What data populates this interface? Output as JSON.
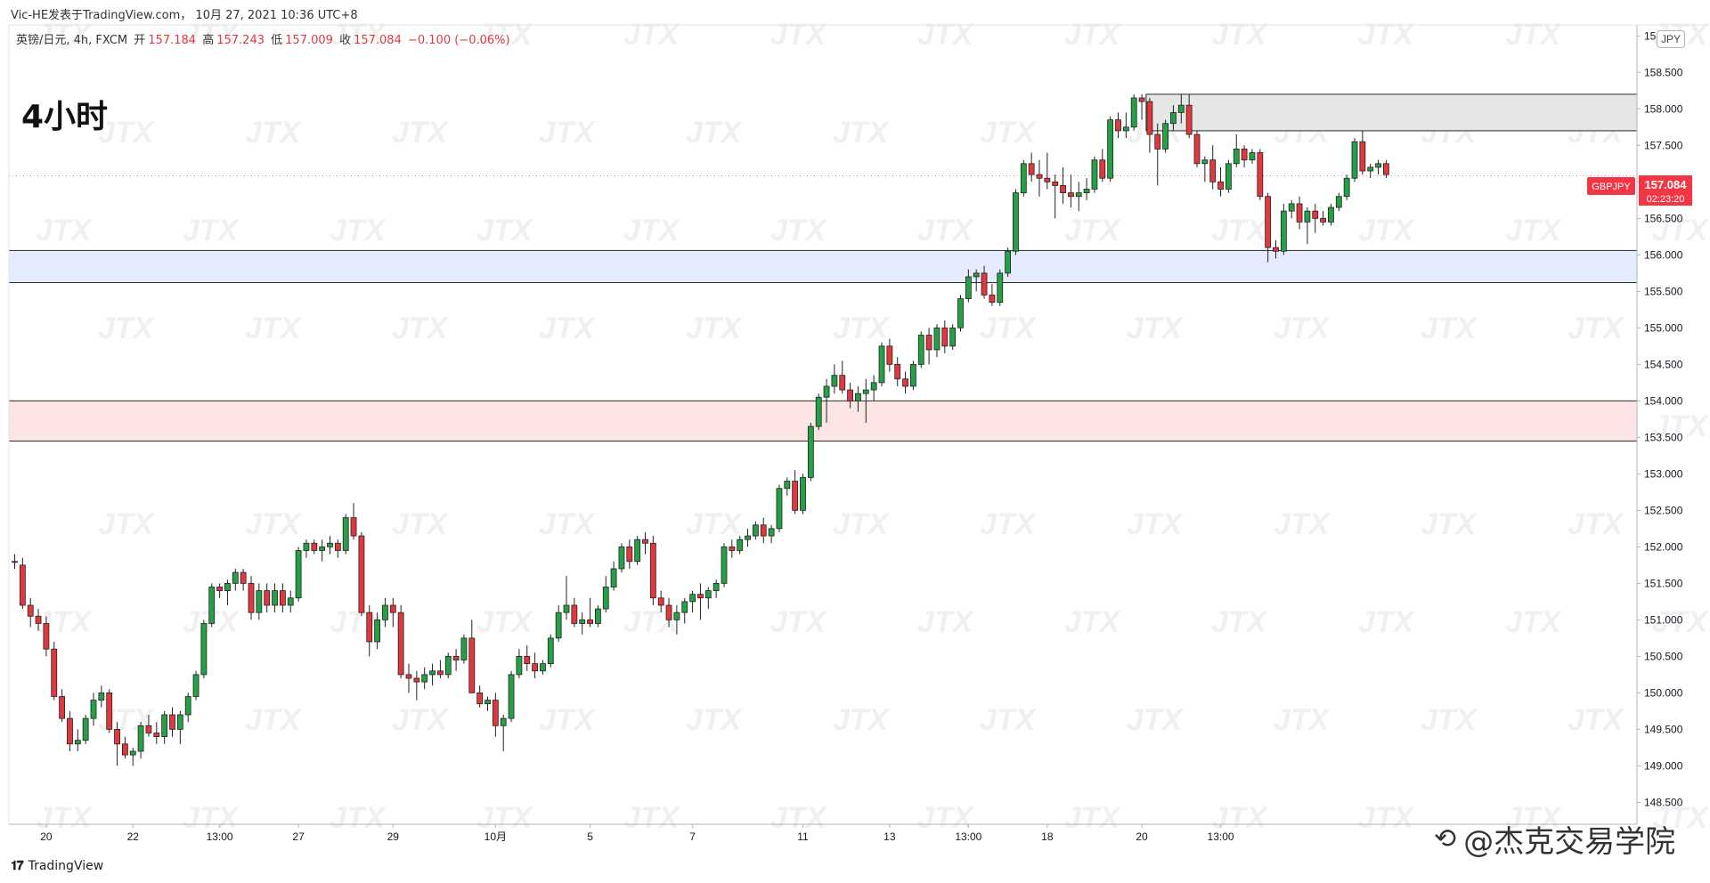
{
  "header": {
    "caption": "Vic-HE发表于TradingView.com， 10月 27, 2021 10:36 UTC+8",
    "symbol_line": "英镑/日元, 4h, FXCM",
    "ohlc": {
      "open_label": "开",
      "open": "157.184",
      "high_label": "高",
      "high": "157.243",
      "low_label": "低",
      "low": "157.009",
      "close_label": "收",
      "close": "157.084",
      "change": "−0.100 (−0.06%)"
    }
  },
  "timeframe_label": "4小时",
  "currency_badge": "JPY",
  "price_tag": {
    "symbol": "GBPJPY",
    "price": "157.084",
    "countdown": "02:23:20"
  },
  "footer": {
    "brand": "TradingView",
    "author_watermark": "@杰克交易学院"
  },
  "watermark_text": "JTX",
  "colors": {
    "up": "#26a046",
    "down": "#e0383e",
    "zone_gray": "#e6e6e6",
    "zone_blue": "#e4ecfd",
    "zone_pink": "#fde5e5",
    "price_tag": "#f23645"
  },
  "chart_data": {
    "type": "candlestick",
    "ylim": [
      148.2,
      159.15
    ],
    "y_ticks": [
      "148.500",
      "149.000",
      "149.500",
      "150.000",
      "150.500",
      "151.000",
      "151.500",
      "152.000",
      "152.500",
      "153.000",
      "153.500",
      "154.000",
      "154.500",
      "155.000",
      "155.500",
      "156.000",
      "156.500",
      "157.000",
      "157.500",
      "158.000",
      "158.500",
      "159.000"
    ],
    "x_ticks": [
      {
        "i": 4,
        "label": "20"
      },
      {
        "i": 15,
        "label": "22"
      },
      {
        "i": 26,
        "label": "13:00"
      },
      {
        "i": 36,
        "label": "27"
      },
      {
        "i": 48,
        "label": "29"
      },
      {
        "i": 61,
        "label": "10月"
      },
      {
        "i": 73,
        "label": "5"
      },
      {
        "i": 86,
        "label": "7"
      },
      {
        "i": 100,
        "label": "11"
      },
      {
        "i": 111,
        "label": "13"
      },
      {
        "i": 121,
        "label": "13:00"
      },
      {
        "i": 131,
        "label": "18"
      },
      {
        "i": 143,
        "label": "20"
      },
      {
        "i": 153,
        "label": "13:00"
      }
    ],
    "zones": [
      {
        "from": 157.7,
        "to": 158.2,
        "color": "gray",
        "start_index": 144
      },
      {
        "from": 155.62,
        "to": 156.06,
        "color": "blue",
        "start_index": 0
      },
      {
        "from": 153.45,
        "to": 154.0,
        "color": "pink",
        "start_index": 0
      }
    ],
    "last_price": 157.084,
    "candles": [
      [
        151.8,
        151.9,
        151.7,
        151.8
      ],
      [
        151.75,
        151.85,
        151.15,
        151.2
      ],
      [
        151.2,
        151.3,
        150.9,
        151.05
      ],
      [
        151.05,
        151.15,
        150.85,
        150.95
      ],
      [
        150.95,
        151.05,
        150.5,
        150.6
      ],
      [
        150.6,
        150.7,
        149.9,
        149.95
      ],
      [
        149.95,
        150.05,
        149.6,
        149.65
      ],
      [
        149.65,
        149.75,
        149.2,
        149.3
      ],
      [
        149.3,
        149.5,
        149.2,
        149.35
      ],
      [
        149.35,
        149.7,
        149.3,
        149.65
      ],
      [
        149.65,
        150.0,
        149.55,
        149.9
      ],
      [
        149.9,
        150.1,
        149.8,
        150.0
      ],
      [
        150.0,
        150.05,
        149.45,
        149.5
      ],
      [
        149.5,
        149.6,
        149.0,
        149.3
      ],
      [
        149.3,
        149.4,
        149.1,
        149.15
      ],
      [
        149.15,
        149.25,
        149.0,
        149.2
      ],
      [
        149.2,
        149.6,
        149.1,
        149.55
      ],
      [
        149.55,
        149.7,
        149.4,
        149.45
      ],
      [
        149.45,
        149.6,
        149.3,
        149.4
      ],
      [
        149.4,
        149.75,
        149.3,
        149.7
      ],
      [
        149.7,
        149.8,
        149.4,
        149.5
      ],
      [
        149.5,
        149.75,
        149.3,
        149.7
      ],
      [
        149.7,
        150.0,
        149.6,
        149.95
      ],
      [
        149.95,
        150.3,
        149.9,
        150.25
      ],
      [
        150.25,
        151.0,
        150.2,
        150.95
      ],
      [
        150.95,
        151.5,
        150.9,
        151.45
      ],
      [
        151.45,
        151.5,
        151.3,
        151.4
      ],
      [
        151.4,
        151.55,
        151.2,
        151.5
      ],
      [
        151.5,
        151.7,
        151.4,
        151.65
      ],
      [
        151.65,
        151.7,
        151.4,
        151.5
      ],
      [
        151.5,
        151.6,
        151.0,
        151.1
      ],
      [
        151.1,
        151.5,
        151.0,
        151.4
      ],
      [
        151.4,
        151.5,
        151.1,
        151.2
      ],
      [
        151.2,
        151.5,
        151.1,
        151.4
      ],
      [
        151.4,
        151.5,
        151.1,
        151.2
      ],
      [
        151.2,
        151.4,
        151.1,
        151.3
      ],
      [
        151.3,
        152.0,
        151.25,
        151.95
      ],
      [
        151.95,
        152.1,
        151.85,
        152.05
      ],
      [
        152.05,
        152.1,
        151.9,
        151.95
      ],
      [
        151.95,
        152.1,
        151.8,
        152.0
      ],
      [
        152.0,
        152.15,
        151.9,
        152.05
      ],
      [
        152.05,
        152.1,
        151.85,
        151.95
      ],
      [
        151.95,
        152.45,
        151.9,
        152.4
      ],
      [
        152.4,
        152.6,
        152.1,
        152.15
      ],
      [
        152.15,
        152.2,
        151.05,
        151.1
      ],
      [
        151.1,
        151.2,
        150.5,
        150.7
      ],
      [
        150.7,
        151.1,
        150.6,
        151.0
      ],
      [
        151.0,
        151.3,
        150.9,
        151.2
      ],
      [
        151.2,
        151.3,
        150.9,
        151.1
      ],
      [
        151.1,
        151.2,
        150.2,
        150.25
      ],
      [
        150.25,
        150.4,
        150.0,
        150.2
      ],
      [
        150.2,
        150.3,
        149.9,
        150.15
      ],
      [
        150.15,
        150.35,
        150.05,
        150.25
      ],
      [
        150.25,
        150.4,
        150.1,
        150.3
      ],
      [
        150.3,
        150.45,
        150.2,
        150.25
      ],
      [
        150.25,
        150.55,
        150.2,
        150.5
      ],
      [
        150.5,
        150.6,
        150.3,
        150.45
      ],
      [
        150.45,
        150.8,
        150.4,
        150.75
      ],
      [
        150.75,
        151.0,
        150.0,
        150.0
      ],
      [
        150.0,
        150.1,
        149.8,
        149.85
      ],
      [
        149.85,
        149.95,
        149.75,
        149.9
      ],
      [
        149.9,
        150.0,
        149.4,
        149.55
      ],
      [
        149.55,
        149.7,
        149.2,
        149.65
      ],
      [
        149.65,
        150.3,
        149.6,
        150.25
      ],
      [
        150.25,
        150.6,
        150.2,
        150.5
      ],
      [
        150.5,
        150.65,
        150.3,
        150.4
      ],
      [
        150.4,
        150.55,
        150.2,
        150.3
      ],
      [
        150.3,
        150.45,
        150.25,
        150.4
      ],
      [
        150.4,
        150.8,
        150.35,
        150.75
      ],
      [
        150.75,
        151.2,
        150.7,
        151.1
      ],
      [
        151.1,
        151.6,
        151.0,
        151.2
      ],
      [
        151.2,
        151.3,
        150.9,
        150.95
      ],
      [
        150.95,
        151.1,
        150.8,
        151.0
      ],
      [
        151.0,
        151.3,
        150.9,
        150.95
      ],
      [
        150.95,
        151.2,
        150.9,
        151.15
      ],
      [
        151.15,
        151.6,
        151.1,
        151.45
      ],
      [
        151.45,
        151.8,
        151.4,
        151.7
      ],
      [
        151.7,
        152.05,
        151.65,
        152.0
      ],
      [
        152.0,
        152.1,
        151.7,
        151.8
      ],
      [
        151.8,
        152.15,
        151.75,
        152.1
      ],
      [
        152.1,
        152.2,
        151.9,
        152.05
      ],
      [
        152.05,
        152.15,
        151.2,
        151.3
      ],
      [
        151.3,
        151.4,
        151.1,
        151.2
      ],
      [
        151.2,
        151.3,
        150.9,
        151.0
      ],
      [
        151.0,
        151.2,
        150.8,
        151.1
      ],
      [
        151.1,
        151.3,
        150.95,
        151.25
      ],
      [
        151.25,
        151.4,
        151.1,
        151.35
      ],
      [
        151.35,
        151.5,
        151.0,
        151.3
      ],
      [
        151.3,
        151.45,
        151.15,
        151.4
      ],
      [
        151.4,
        151.55,
        151.3,
        151.5
      ],
      [
        151.5,
        152.05,
        151.45,
        152.0
      ],
      [
        152.0,
        152.1,
        151.85,
        151.95
      ],
      [
        151.95,
        152.15,
        151.9,
        152.1
      ],
      [
        152.1,
        152.25,
        152.0,
        152.15
      ],
      [
        152.15,
        152.35,
        152.1,
        152.3
      ],
      [
        152.3,
        152.4,
        152.05,
        152.15
      ],
      [
        152.15,
        152.3,
        152.05,
        152.25
      ],
      [
        152.25,
        152.85,
        152.2,
        152.8
      ],
      [
        152.8,
        152.95,
        152.7,
        152.9
      ],
      [
        152.9,
        153.05,
        152.45,
        152.5
      ],
      [
        152.5,
        153.0,
        152.45,
        152.95
      ],
      [
        152.95,
        153.7,
        152.9,
        153.65
      ],
      [
        153.65,
        154.1,
        153.6,
        154.05
      ],
      [
        154.05,
        154.3,
        153.7,
        154.2
      ],
      [
        154.2,
        154.5,
        154.1,
        154.35
      ],
      [
        154.35,
        154.55,
        154.1,
        154.15
      ],
      [
        154.15,
        154.25,
        153.9,
        154.0
      ],
      [
        154.0,
        154.2,
        153.85,
        154.1
      ],
      [
        154.1,
        154.3,
        153.7,
        154.15
      ],
      [
        154.15,
        154.35,
        154.0,
        154.25
      ],
      [
        154.25,
        154.8,
        154.2,
        154.75
      ],
      [
        154.75,
        154.85,
        154.4,
        154.5
      ],
      [
        154.5,
        154.6,
        154.2,
        154.3
      ],
      [
        154.3,
        154.4,
        154.1,
        154.2
      ],
      [
        154.2,
        154.55,
        154.15,
        154.5
      ],
      [
        154.5,
        154.95,
        154.45,
        154.9
      ],
      [
        154.9,
        155.0,
        154.5,
        154.7
      ],
      [
        154.7,
        155.05,
        154.6,
        155.0
      ],
      [
        155.0,
        155.1,
        154.65,
        154.75
      ],
      [
        154.75,
        155.05,
        154.7,
        155.0
      ],
      [
        155.0,
        155.45,
        154.95,
        155.4
      ],
      [
        155.4,
        155.8,
        155.35,
        155.7
      ],
      [
        155.7,
        155.8,
        155.5,
        155.75
      ],
      [
        155.75,
        155.85,
        155.4,
        155.45
      ],
      [
        155.45,
        155.6,
        155.3,
        155.35
      ],
      [
        155.35,
        155.8,
        155.3,
        155.75
      ],
      [
        155.75,
        156.1,
        155.7,
        156.05
      ],
      [
        156.05,
        156.9,
        156.0,
        156.85
      ],
      [
        156.85,
        157.3,
        156.8,
        157.25
      ],
      [
        157.25,
        157.4,
        157.0,
        157.1
      ],
      [
        157.1,
        157.3,
        156.8,
        157.05
      ],
      [
        157.05,
        157.4,
        156.9,
        157.0
      ],
      [
        157.0,
        157.1,
        156.5,
        156.95
      ],
      [
        156.95,
        157.2,
        156.7,
        156.85
      ],
      [
        156.85,
        157.1,
        156.65,
        156.8
      ],
      [
        156.8,
        157.0,
        156.6,
        156.85
      ],
      [
        156.85,
        157.05,
        156.75,
        156.9
      ],
      [
        156.9,
        157.35,
        156.85,
        157.3
      ],
      [
        157.3,
        157.45,
        157.0,
        157.05
      ],
      [
        157.05,
        157.9,
        157.0,
        157.85
      ],
      [
        157.85,
        157.95,
        157.6,
        157.7
      ],
      [
        157.7,
        157.95,
        157.6,
        157.75
      ],
      [
        157.75,
        158.2,
        157.7,
        158.15
      ],
      [
        158.15,
        158.2,
        157.85,
        158.1
      ],
      [
        158.1,
        158.15,
        157.4,
        157.65
      ],
      [
        157.65,
        157.8,
        156.95,
        157.45
      ],
      [
        157.45,
        157.85,
        157.4,
        157.8
      ],
      [
        157.8,
        158.05,
        157.7,
        157.95
      ],
      [
        157.95,
        158.2,
        157.8,
        158.05
      ],
      [
        158.05,
        158.2,
        157.6,
        157.65
      ],
      [
        157.65,
        157.7,
        157.2,
        157.25
      ],
      [
        157.25,
        157.35,
        157.0,
        157.3
      ],
      [
        157.3,
        157.5,
        156.9,
        157.0
      ],
      [
        157.0,
        157.2,
        156.8,
        156.9
      ],
      [
        156.9,
        157.3,
        156.85,
        157.25
      ],
      [
        157.25,
        157.65,
        157.2,
        157.45
      ],
      [
        157.45,
        157.5,
        157.2,
        157.3
      ],
      [
        157.3,
        157.45,
        157.25,
        157.4
      ],
      [
        157.4,
        157.45,
        156.75,
        156.8
      ],
      [
        156.8,
        156.85,
        155.9,
        156.1
      ],
      [
        156.1,
        156.2,
        155.95,
        156.05
      ],
      [
        156.05,
        156.7,
        156.0,
        156.6
      ],
      [
        156.6,
        156.75,
        156.5,
        156.7
      ],
      [
        156.7,
        156.8,
        156.35,
        156.45
      ],
      [
        156.45,
        156.65,
        156.15,
        156.6
      ],
      [
        156.6,
        156.7,
        156.3,
        156.5
      ],
      [
        156.5,
        156.6,
        156.4,
        156.45
      ],
      [
        156.45,
        156.7,
        156.4,
        156.65
      ],
      [
        156.65,
        156.85,
        156.6,
        156.8
      ],
      [
        156.8,
        157.1,
        156.75,
        157.05
      ],
      [
        157.05,
        157.6,
        157.0,
        157.55
      ],
      [
        157.55,
        157.7,
        157.1,
        157.15
      ],
      [
        157.15,
        157.25,
        157.05,
        157.2
      ],
      [
        157.2,
        157.3,
        157.1,
        157.25
      ],
      [
        157.25,
        157.3,
        157.05,
        157.1
      ]
    ]
  }
}
